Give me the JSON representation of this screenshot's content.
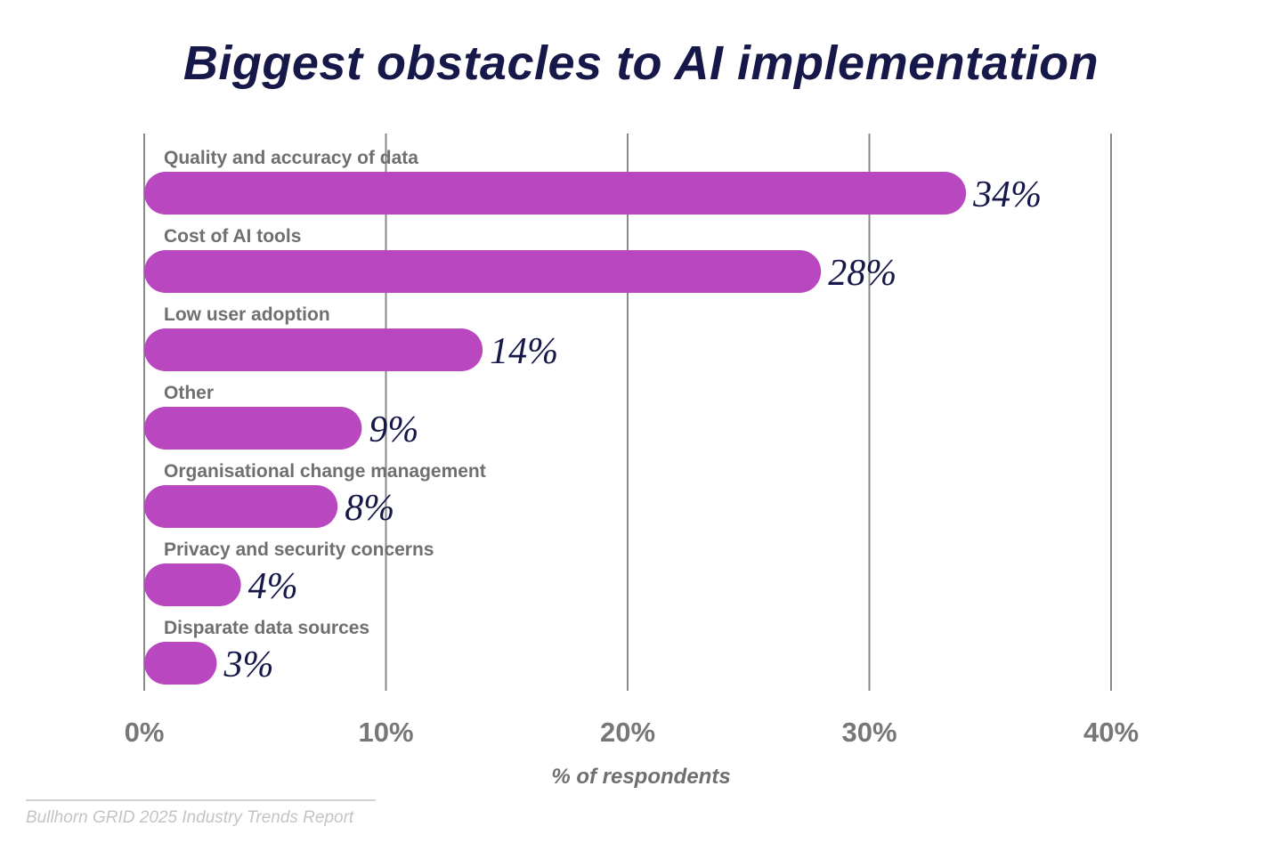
{
  "chart_data": {
    "type": "bar",
    "orientation": "horizontal",
    "title": "Biggest obstacles to AI implementation",
    "xlabel": "% of respondents",
    "categories": [
      "Quality and accuracy of data",
      "Cost of AI tools",
      "Low user adoption",
      "Other",
      "Organisational change management",
      "Privacy and security concerns",
      "Disparate data sources"
    ],
    "values": [
      34,
      28,
      14,
      9,
      8,
      4,
      3
    ],
    "value_labels": [
      "34%",
      "28%",
      "14%",
      "9%",
      "8%",
      "4%",
      "3%"
    ],
    "xlim": [
      0,
      40
    ],
    "x_ticks": [
      0,
      10,
      20,
      30,
      40
    ],
    "x_tick_labels": [
      "0%",
      "10%",
      "20%",
      "30%",
      "40%"
    ],
    "grid": "vertical",
    "colors": {
      "bar": "#b847c0",
      "title": "#16184a",
      "value_label": "#16184a",
      "grid": "#8a8a8a"
    }
  },
  "source": "Bullhorn GRID 2025 Industry Trends Report"
}
